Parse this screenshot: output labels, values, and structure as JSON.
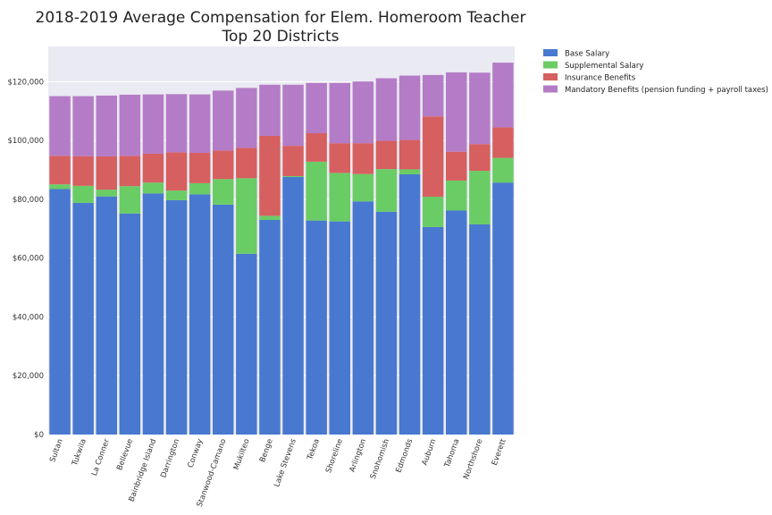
{
  "chart_data": {
    "type": "bar",
    "stacked": true,
    "title": "2018-2019 Average Compensation for Elem. Homeroom Teacher",
    "subtitle": "Top 20 Districts",
    "xlabel": "",
    "ylabel": "",
    "ylim": [
      0,
      132000
    ],
    "yticks": [
      0,
      20000,
      40000,
      60000,
      80000,
      100000,
      120000
    ],
    "ytick_labels": [
      "$0",
      "$20,000",
      "$40,000",
      "$60,000",
      "$80,000",
      "$100,000",
      "$120,000"
    ],
    "grid": true,
    "legend_position": "outside-top-right",
    "categories": [
      "Sultan",
      "Tukwila",
      "La Conner",
      "Bellevue",
      "Bainbridge Island",
      "Darrington",
      "Conway",
      "Stanwood-Camano",
      "Mukilteo",
      "Benge",
      "Lake Stevens",
      "Tekoa",
      "Shoreline",
      "Arlington",
      "Snohomish",
      "Edmonds",
      "Auburn",
      "Tahoma",
      "Northshore",
      "Everett"
    ],
    "series": [
      {
        "name": "Base Salary",
        "color": "#4878cf",
        "values": [
          83500,
          78800,
          81000,
          75200,
          82000,
          79700,
          81700,
          78200,
          61500,
          73000,
          87600,
          72800,
          72500,
          79300,
          75800,
          88500,
          70600,
          76200,
          71500,
          85700
        ]
      },
      {
        "name": "Supplemental Salary",
        "color": "#6acc65",
        "values": [
          1600,
          5800,
          2300,
          9300,
          3700,
          3300,
          3800,
          8700,
          25700,
          1400,
          300,
          20000,
          16500,
          9300,
          14500,
          1700,
          10300,
          10200,
          18200,
          8400
        ]
      },
      {
        "name": "Insurance Benefits",
        "color": "#d65f5f",
        "values": [
          9700,
          10100,
          11300,
          10300,
          9800,
          13000,
          10300,
          9700,
          10300,
          27200,
          10300,
          9700,
          10100,
          10500,
          9600,
          10000,
          27300,
          9800,
          9100,
          10400
        ]
      },
      {
        "name": "Mandatory Benefits (pension funding + payroll taxes)",
        "color": "#b47cc7",
        "values": [
          20300,
          20400,
          20700,
          20800,
          20200,
          19800,
          19900,
          20400,
          20400,
          17400,
          20800,
          17100,
          20500,
          21000,
          21300,
          21900,
          14100,
          27000,
          24300,
          22000
        ]
      }
    ]
  }
}
